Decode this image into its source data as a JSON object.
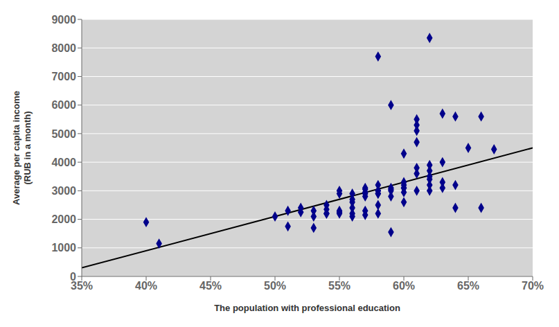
{
  "chart_data": {
    "type": "scatter",
    "xlabel": "The population with professional education",
    "ylabel": "Average per capita income\n(RUB in a month)",
    "xlim": [
      0.35,
      0.7
    ],
    "ylim": [
      0,
      9000
    ],
    "xticks": [
      {
        "value": 0.35,
        "label": "35%"
      },
      {
        "value": 0.4,
        "label": "40%"
      },
      {
        "value": 0.45,
        "label": "45%"
      },
      {
        "value": 0.5,
        "label": "50%"
      },
      {
        "value": 0.55,
        "label": "55%"
      },
      {
        "value": 0.6,
        "label": "60%"
      },
      {
        "value": 0.65,
        "label": "65%"
      },
      {
        "value": 0.7,
        "label": "70%"
      }
    ],
    "yticks": [
      0,
      1000,
      2000,
      3000,
      4000,
      5000,
      6000,
      7000,
      8000,
      9000
    ],
    "grid": "y",
    "series": [
      {
        "type": "scatter",
        "color": "#00008B",
        "marker": "diamond",
        "x": [
          0.4,
          0.41,
          0.5,
          0.51,
          0.51,
          0.52,
          0.52,
          0.53,
          0.53,
          0.53,
          0.54,
          0.54,
          0.54,
          0.54,
          0.55,
          0.55,
          0.55,
          0.55,
          0.55,
          0.56,
          0.56,
          0.56,
          0.56,
          0.56,
          0.56,
          0.57,
          0.57,
          0.57,
          0.57,
          0.57,
          0.57,
          0.57,
          0.58,
          0.58,
          0.58,
          0.58,
          0.58,
          0.58,
          0.58,
          0.58,
          0.59,
          0.59,
          0.59,
          0.59,
          0.59,
          0.59,
          0.6,
          0.6,
          0.6,
          0.6,
          0.6,
          0.6,
          0.6,
          0.61,
          0.61,
          0.61,
          0.61,
          0.61,
          0.61,
          0.61,
          0.62,
          0.62,
          0.62,
          0.62,
          0.62,
          0.62,
          0.62,
          0.63,
          0.63,
          0.63,
          0.63,
          0.64,
          0.64,
          0.64,
          0.65,
          0.66,
          0.66,
          0.67
        ],
        "values": [
          1900,
          1150,
          2100,
          2300,
          1750,
          2250,
          2400,
          2100,
          2300,
          1700,
          2200,
          2350,
          2500,
          2200,
          2900,
          3000,
          2200,
          2300,
          2250,
          2900,
          2200,
          2100,
          2400,
          2600,
          2700,
          2800,
          2900,
          3050,
          2300,
          3100,
          2950,
          2150,
          2200,
          2500,
          2900,
          3000,
          3200,
          2900,
          3000,
          7700,
          2800,
          3000,
          3100,
          3050,
          1550,
          6000,
          3100,
          3200,
          3300,
          2600,
          2950,
          3100,
          4300,
          3800,
          3000,
          4700,
          3600,
          5100,
          5300,
          5500,
          3200,
          3500,
          3700,
          3400,
          3000,
          3900,
          8350,
          4000,
          5700,
          3300,
          3100,
          2400,
          3200,
          5600,
          4500,
          2400,
          5600,
          4450
        ]
      },
      {
        "type": "line",
        "color": "#000000",
        "x": [
          0.35,
          0.7
        ],
        "values": [
          300,
          4500
        ]
      }
    ]
  }
}
